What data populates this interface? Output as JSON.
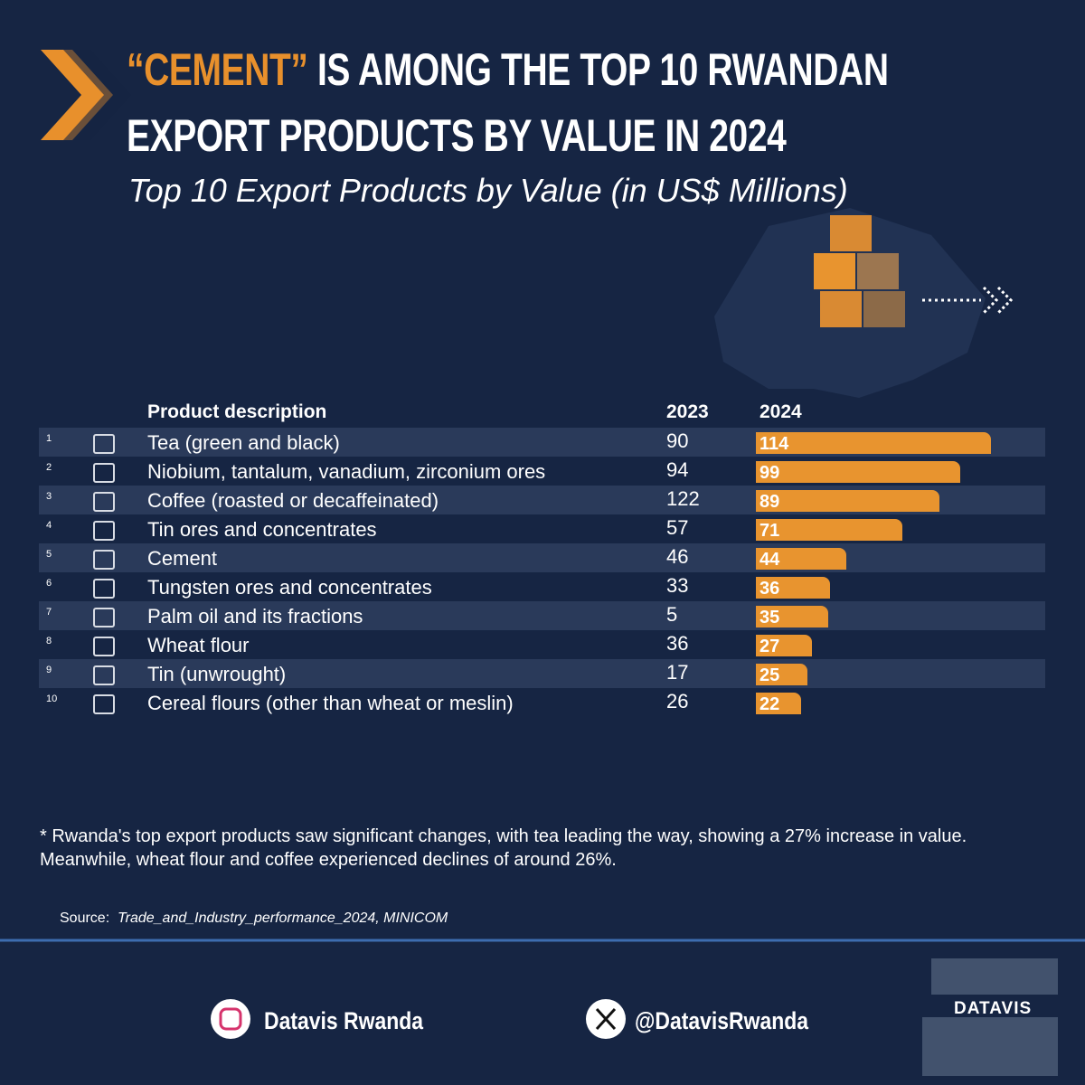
{
  "chart_data": {
    "type": "bar",
    "title_highlight": "“CEMENT”",
    "title_line1": " IS AMONG THE TOP 10 RWANDAN",
    "title_line2": "EXPORT PRODUCTS BY VALUE IN 2024",
    "subtitle": "Top 10 Export Products by Value (in US$ Millions)",
    "header_product": "Product description",
    "ranks": [
      1,
      2,
      3,
      4,
      5,
      6,
      7,
      8,
      9,
      10
    ],
    "categories": [
      "Tea (green and black)",
      "Niobium, tantalum, vanadium, zirconium ores",
      "Coffee (roasted or decaffeinated)",
      "Tin ores and concentrates",
      "Cement",
      "Tungsten ores and concentrates",
      "Palm oil and its fractions",
      "Wheat flour",
      "Tin (unwrought)",
      "Cereal flours (other than wheat or meslin)"
    ],
    "series": [
      {
        "name": "2023",
        "values": [
          90,
          94,
          122,
          57,
          46,
          33,
          5,
          36,
          17,
          26
        ]
      },
      {
        "name": "2024",
        "color": "#e8942f",
        "values": [
          114,
          99,
          89,
          71,
          44,
          36,
          35,
          27,
          25,
          22
        ]
      }
    ],
    "note": "* Rwanda's top export products saw significant changes, with tea leading the way, showing a 27% increase in value. Meanwhile, wheat flour and coffee experienced declines of around 26%.",
    "source_label": "Source:",
    "source": "Trade_and_Industry_performance_2024, MINICOM",
    "instagram": "Datavis Rwanda",
    "x_handle": "@DatavisRwanda",
    "brand": "DATAVIS"
  }
}
